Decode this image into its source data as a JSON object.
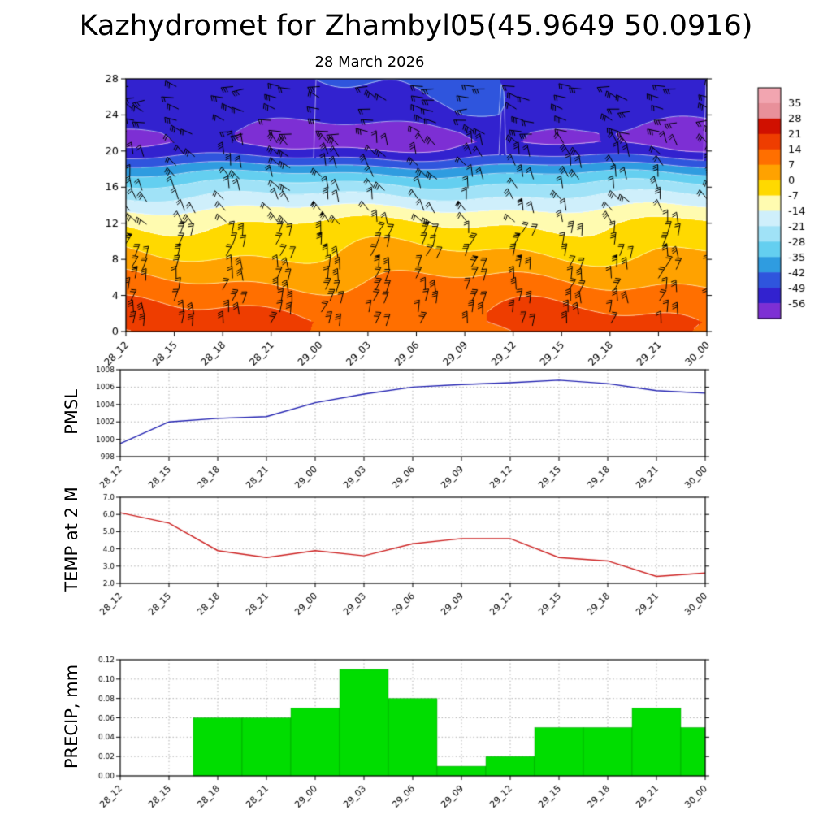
{
  "page": {
    "title": "Kazhydromet for Zhambyl05(45.9649 50.0916)",
    "subtitle": "28 March 2026"
  },
  "time_labels": [
    "28_12",
    "28_15",
    "28_18",
    "28_21",
    "29_00",
    "29_03",
    "29_06",
    "29_09",
    "29_12",
    "29_15",
    "29_18",
    "29_21",
    "30_00"
  ],
  "chart_data": [
    {
      "type": "heatmap",
      "name": "wind-temperature-height-cross-section",
      "title": "28 March 2026",
      "x_tick_labels": [
        "28_12",
        "28_15",
        "28_18",
        "28_21",
        "29_00",
        "29_03",
        "29_06",
        "29_09",
        "29_12",
        "29_15",
        "29_18",
        "29_21",
        "30_00"
      ],
      "y_ticks": [
        0,
        4,
        8,
        12,
        16,
        20,
        24,
        28
      ],
      "ylim": [
        0,
        28
      ],
      "colorbar_levels": [
        35,
        28,
        21,
        14,
        7,
        0,
        -7,
        -14,
        -21,
        -28,
        -35,
        -42,
        -49,
        -56
      ],
      "colorbar_over_color": "#f2a5b0",
      "colorbar_segment_colors": [
        "#e8909a",
        "#d01000",
        "#ee3d00",
        "#ff6f00",
        "#ffa200",
        "#ffd900",
        "#fffbb0",
        "#cfeffb",
        "#a0e2f7",
        "#64cff0",
        "#2f9ce0",
        "#2f55dd",
        "#3222cf"
      ],
      "colorbar_under_color": "#7d2fd4",
      "profile_heights": [
        0,
        1,
        2,
        4,
        6,
        8,
        10,
        12,
        13,
        14,
        15,
        16,
        17,
        18,
        19,
        20,
        21,
        22,
        23,
        24,
        26,
        28
      ],
      "profile_temps": [
        13.5,
        15,
        14,
        10.5,
        6,
        1.5,
        -2.5,
        -7,
        -11,
        -16,
        -21,
        -26,
        -32,
        -39,
        -47,
        -54,
        -58,
        -57.5,
        -55,
        -52,
        -50.5,
        -49.5
      ],
      "wind_barb_color": "#000000",
      "contour_color": "#ffffff"
    },
    {
      "type": "line",
      "name": "pmsl",
      "ylabel": "PMSL",
      "color": "#2020b0",
      "categories": [
        "28_12",
        "28_15",
        "28_18",
        "28_21",
        "29_00",
        "29_03",
        "29_06",
        "29_09",
        "29_12",
        "29_15",
        "29_18",
        "29_21",
        "30_00"
      ],
      "values": [
        999.5,
        1002.0,
        1002.4,
        1002.6,
        1004.2,
        1005.2,
        1006.0,
        1006.3,
        1006.5,
        1006.8,
        1006.4,
        1005.6,
        1005.3
      ],
      "ylim": [
        998,
        1008
      ],
      "yticks": [
        998,
        1000,
        1002,
        1004,
        1006,
        1008
      ],
      "ytick_labels": [
        "998",
        "1000",
        "1002",
        "1004",
        "1006",
        "1008"
      ]
    },
    {
      "type": "line",
      "name": "temp-2m",
      "ylabel": "TEMP at 2 M",
      "color": "#cc2020",
      "categories": [
        "28_12",
        "28_15",
        "28_18",
        "28_21",
        "29_00",
        "29_03",
        "29_06",
        "29_09",
        "29_12",
        "29_15",
        "29_18",
        "29_21",
        "30_00"
      ],
      "values": [
        6.1,
        5.5,
        3.9,
        3.5,
        3.9,
        3.6,
        4.3,
        4.6,
        4.6,
        3.5,
        3.3,
        2.4,
        2.6
      ],
      "ylim": [
        2.0,
        7.0
      ],
      "yticks": [
        2,
        3,
        4,
        5,
        6,
        7
      ],
      "ytick_labels": [
        "2.0",
        "3.0",
        "4.0",
        "5.0",
        "6.0",
        "7.0"
      ]
    },
    {
      "type": "bar",
      "name": "precip",
      "ylabel": "PRECIP, mm",
      "color": "#00dd00",
      "categories": [
        "28_12",
        "28_15",
        "28_18",
        "28_21",
        "29_00",
        "29_03",
        "29_06",
        "29_09",
        "29_12",
        "29_15",
        "29_18",
        "29_21",
        "30_00"
      ],
      "values": [
        0,
        0,
        0.06,
        0.06,
        0.07,
        0.11,
        0.08,
        0.01,
        0.02,
        0.05,
        0.05,
        0.07,
        0.05
      ],
      "ylim": [
        0,
        0.12
      ],
      "yticks": [
        0,
        0.02,
        0.04,
        0.06,
        0.08,
        0.1,
        0.12
      ],
      "ytick_labels": [
        "0.00",
        "0.02",
        "0.04",
        "0.06",
        "0.08",
        "0.10",
        "0.12"
      ]
    }
  ]
}
